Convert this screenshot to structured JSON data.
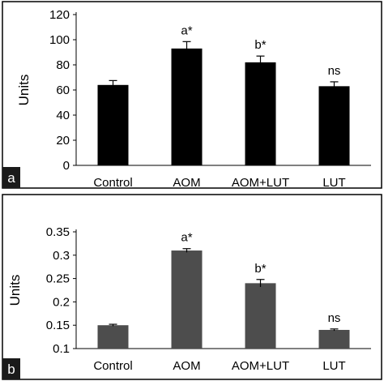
{
  "chart_data": [
    {
      "panel": "a",
      "type": "bar",
      "categories": [
        "Control",
        "AOM",
        "AOM+LUT",
        "LUT"
      ],
      "values": [
        64,
        93,
        82,
        63
      ],
      "errors": [
        3.5,
        5.5,
        5,
        3.5
      ],
      "annotations": [
        "",
        "a*",
        "b*",
        "ns"
      ],
      "ylabel": "Units",
      "ylim": [
        0,
        120
      ],
      "yticks": [
        0,
        20,
        40,
        60,
        80,
        100,
        120
      ],
      "ytick_labels": [
        "0",
        "20",
        "40",
        "60",
        "80",
        "100",
        "120"
      ],
      "bar_color": "#000000"
    },
    {
      "panel": "b",
      "type": "bar",
      "categories": [
        "Control",
        "AOM",
        "AOM+LUT",
        "LUT"
      ],
      "values": [
        0.15,
        0.31,
        0.24,
        0.14
      ],
      "errors": [
        0.002,
        0.004,
        0.008,
        0.002
      ],
      "annotations": [
        "",
        "a*",
        "b*",
        "ns"
      ],
      "ylabel": "Units",
      "ylim": [
        0.1,
        0.35
      ],
      "yticks": [
        0.1,
        0.15,
        0.2,
        0.25,
        0.3,
        0.35
      ],
      "ytick_labels": [
        "0.1",
        "0.15",
        "0.2",
        "0.25",
        "0.3",
        "0.35"
      ],
      "bar_color": "#4d4d4d"
    }
  ]
}
